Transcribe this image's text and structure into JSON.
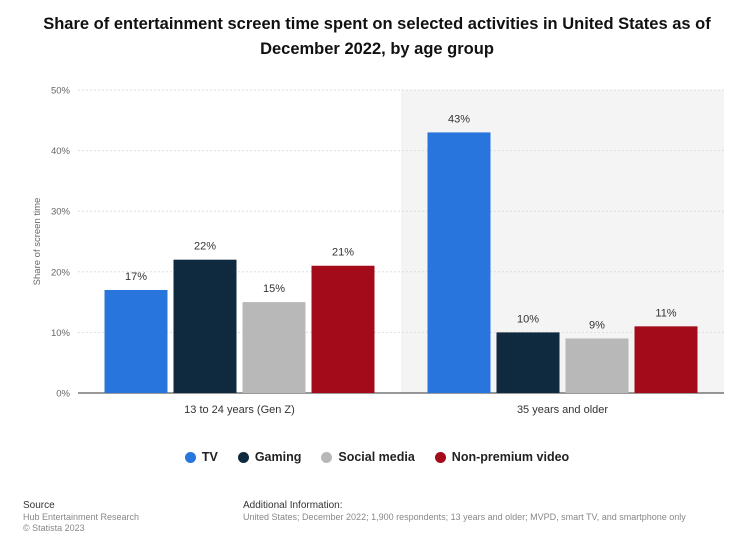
{
  "title": "Share of entertainment screen time spent on selected activities in United States as of December 2022, by age group",
  "colors": {
    "TV": "#2876dd",
    "Gaming": "#0f2a3f",
    "Social media": "#b8b8b8",
    "Non-premium video": "#a30b1b"
  },
  "chart_data": {
    "type": "bar",
    "categories": [
      "13 to 24 years (Gen Z)",
      "35 years and older"
    ],
    "series": [
      {
        "name": "TV",
        "values": [
          17,
          43
        ]
      },
      {
        "name": "Gaming",
        "values": [
          22,
          10
        ]
      },
      {
        "name": "Social media",
        "values": [
          15,
          9
        ]
      },
      {
        "name": "Non-premium video",
        "values": [
          21,
          11
        ]
      }
    ],
    "value_labels": [
      [
        "17%",
        "43%"
      ],
      [
        "22%",
        "10%"
      ],
      [
        "15%",
        "9%"
      ],
      [
        "21%",
        "11%"
      ]
    ],
    "ylabel": "Share of screen time",
    "yticks": [
      "0%",
      "10%",
      "20%",
      "30%",
      "40%",
      "50%"
    ],
    "ylim": [
      0,
      50
    ],
    "grid": true,
    "legend_position": "bottom"
  },
  "footer": {
    "source_heading": "Source",
    "source_lines": [
      "Hub Entertainment Research",
      "© Statista 2023"
    ],
    "info_heading": "Additional Information:",
    "info_text": "United States; December 2022; 1,900 respondents; 13 years and older; MVPD, smart TV, and smartphone only"
  }
}
